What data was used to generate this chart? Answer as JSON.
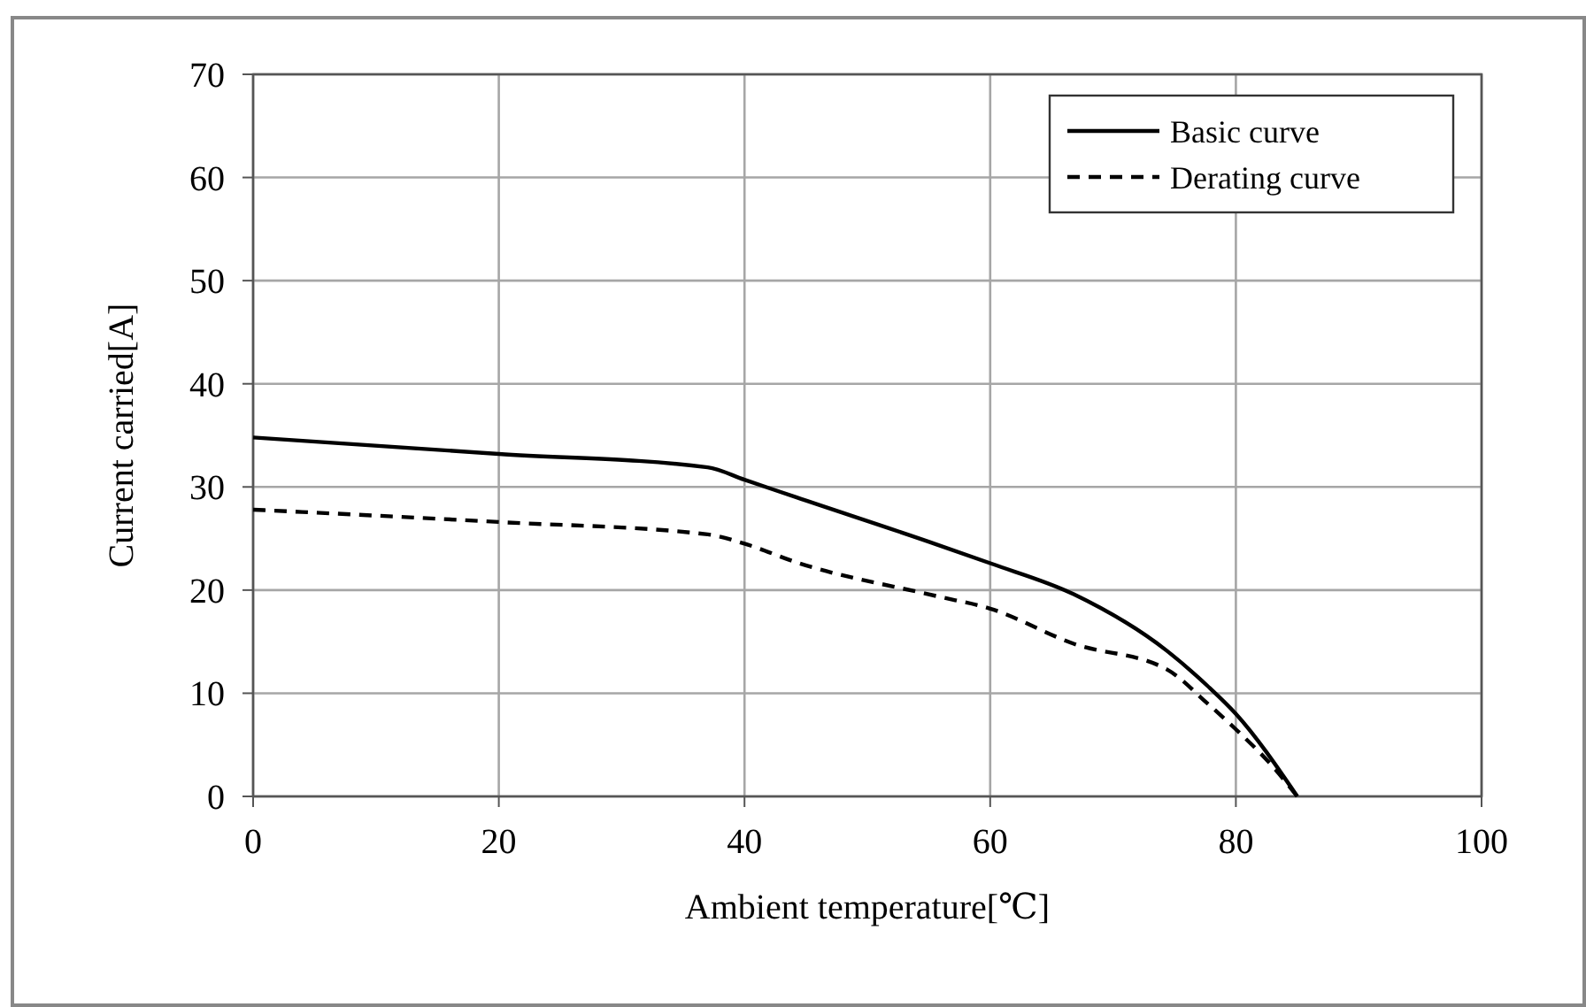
{
  "chart_data": {
    "type": "line",
    "xlabel": "Ambient temperature[℃]",
    "ylabel": "Current carried[A]",
    "xlim": [
      0,
      100
    ],
    "xticks": [
      0,
      20,
      40,
      60,
      80,
      100
    ],
    "ylim": [
      0,
      70
    ],
    "yticks": [
      0,
      10,
      20,
      30,
      40,
      50,
      60,
      70
    ],
    "grid": true,
    "legend": "top right",
    "marker": "none",
    "series": [
      {
        "name": "Basic curve",
        "color": "#000000",
        "line_style": "solid",
        "x": [
          0,
          20,
          37,
          40,
          44.2,
          55.7,
          60,
          66.8,
          74.4,
          77.7,
          80,
          85
        ],
        "values": [
          34.8,
          33.2,
          31.9,
          30.7,
          29.0,
          24.4,
          22.6,
          19.6,
          14.1,
          10.7,
          8.0,
          0
        ]
      },
      {
        "name": "Derating curve",
        "color": "#000000",
        "line_style": "dashed",
        "x": [
          0,
          20,
          37,
          40,
          44.2,
          55.7,
          60,
          66.8,
          74.4,
          77.7,
          80,
          83,
          85
        ],
        "values": [
          27.8,
          26.6,
          25.4,
          24.5,
          22.7,
          19.4,
          18.2,
          14.8,
          12.3,
          9.0,
          6.5,
          2.9,
          0
        ]
      }
    ]
  }
}
